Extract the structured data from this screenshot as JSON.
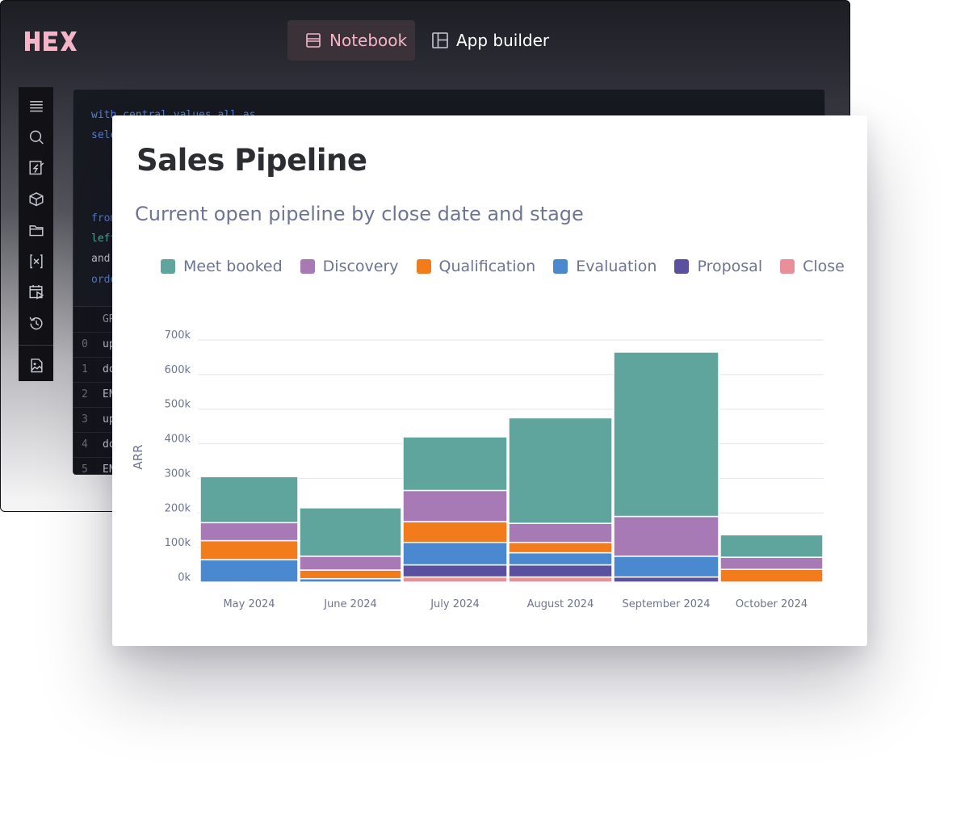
{
  "app": {
    "tabs": [
      {
        "label": "Notebook",
        "icon": "notebook-icon",
        "active": true
      },
      {
        "label": "App builder",
        "icon": "app-builder-icon",
        "active": false
      }
    ],
    "rail_icons": [
      "menu-icon",
      "search-icon",
      "bolt-notebook-icon",
      "cube-icon",
      "folder-icon",
      "variables-icon",
      "schedule-icon",
      "history-icon",
      "image-chart-icon"
    ]
  },
  "editor": {
    "code_lines": [
      {
        "text": "with central_values_all as",
        "cls": "kw"
      },
      {
        "text": "sele",
        "cls": "kw"
      },
      {
        "text": "",
        "cls": "kw"
      },
      {
        "text": "",
        "cls": "kw"
      },
      {
        "text": "from",
        "cls": "kw"
      },
      {
        "text": "left",
        "cls": "kw2"
      },
      {
        "text": "and",
        "cls": "kw3"
      },
      {
        "text": "orde",
        "cls": "kw"
      }
    ],
    "table_header": "GR",
    "rows": [
      {
        "idx": "0",
        "val": "up"
      },
      {
        "idx": "1",
        "val": "do"
      },
      {
        "idx": "2",
        "val": "EN"
      },
      {
        "idx": "3",
        "val": "up"
      },
      {
        "idx": "4",
        "val": "do"
      },
      {
        "idx": "5",
        "val": "EN"
      }
    ]
  },
  "card": {
    "title": "Sales Pipeline",
    "subtitle": "Current open pipeline by close date and stage"
  },
  "chart_data": {
    "type": "bar",
    "stacked": true,
    "categories": [
      "May 2024",
      "June 2024",
      "July 2024",
      "August 2024",
      "September 2024",
      "October 2024"
    ],
    "series": [
      {
        "name": "Close",
        "color": "#e8909a",
        "values": [
          0,
          0,
          15000,
          15000,
          0,
          0
        ]
      },
      {
        "name": "Proposal",
        "color": "#5b4fa0",
        "values": [
          0,
          0,
          35000,
          35000,
          15000,
          0
        ]
      },
      {
        "name": "Evaluation",
        "color": "#4a89cf",
        "values": [
          65000,
          10000,
          65000,
          35000,
          60000,
          0
        ]
      },
      {
        "name": "Qualification",
        "color": "#f27b1c",
        "values": [
          55000,
          25000,
          60000,
          30000,
          0,
          37000
        ]
      },
      {
        "name": "Discovery",
        "color": "#a87ab5",
        "values": [
          52000,
          40000,
          90000,
          55000,
          115000,
          35000
        ]
      },
      {
        "name": "Meet booked",
        "color": "#5fa59d",
        "values": [
          133000,
          140000,
          155000,
          305000,
          475000,
          65000
        ]
      }
    ],
    "legend_order": [
      "Meet booked",
      "Discovery",
      "Qualification",
      "Evaluation",
      "Proposal",
      "Close"
    ],
    "ylabel": "ARR",
    "yticks": [
      "0k",
      "100k",
      "200k",
      "300k",
      "400k",
      "500k",
      "600k",
      "700k"
    ],
    "ylim": [
      0,
      700000
    ],
    "grid": true,
    "legend_position": "top"
  }
}
